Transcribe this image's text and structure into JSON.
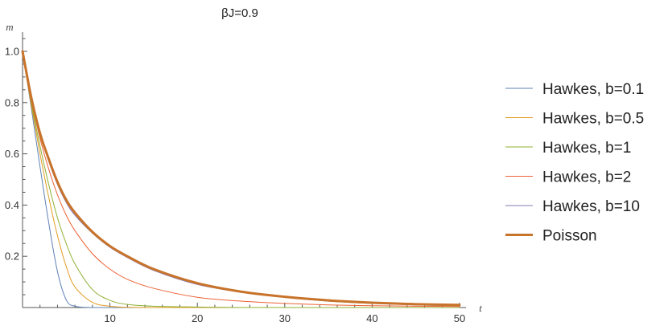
{
  "chart_data": {
    "type": "line",
    "title": "βJ=0.9",
    "xlabel": "t",
    "ylabel": "m",
    "xlim": [
      0,
      50
    ],
    "ylim": [
      0,
      1.05
    ],
    "x_ticks": [
      10,
      20,
      30,
      40,
      50
    ],
    "y_ticks": [
      0.2,
      0.4,
      0.6,
      0.8,
      1.0
    ],
    "x_tick_labels": [
      "10",
      "20",
      "30",
      "40",
      "50"
    ],
    "y_tick_labels": [
      "0.2",
      "0.4",
      "0.6",
      "0.8",
      "1.0"
    ],
    "grid": false,
    "legend_position": "right",
    "x": [
      0,
      1,
      2,
      3,
      4,
      5,
      6,
      8,
      10,
      12,
      15,
      20,
      25,
      30,
      35,
      40,
      45,
      50
    ],
    "series": [
      {
        "name": "Hawkes, b=0.1",
        "color": "#5e81b5",
        "values": [
          1.0,
          0.78,
          0.55,
          0.33,
          0.14,
          0.03,
          0.005,
          0.0,
          0.0,
          0.0,
          0.0,
          0.0,
          0.0,
          0.0,
          0.0,
          0.0,
          0.0,
          0.0
        ]
      },
      {
        "name": "Hawkes, b=0.5",
        "color": "#e19c24",
        "values": [
          1.0,
          0.79,
          0.6,
          0.43,
          0.28,
          0.16,
          0.08,
          0.02,
          0.005,
          0.001,
          0.0,
          0.0,
          0.0,
          0.0,
          0.0,
          0.0,
          0.0,
          0.0
        ]
      },
      {
        "name": "Hawkes, b=1",
        "color": "#8fb032",
        "values": [
          1.0,
          0.8,
          0.63,
          0.48,
          0.35,
          0.25,
          0.17,
          0.07,
          0.028,
          0.012,
          0.005,
          0.002,
          0.0,
          0.0,
          0.0,
          0.0,
          0.0,
          0.0
        ]
      },
      {
        "name": "Hawkes, b=2",
        "color": "#eb6235",
        "values": [
          1.0,
          0.81,
          0.66,
          0.54,
          0.44,
          0.36,
          0.3,
          0.21,
          0.15,
          0.11,
          0.075,
          0.04,
          0.025,
          0.016,
          0.01,
          0.007,
          0.005,
          0.004
        ]
      },
      {
        "name": "Hawkes, b=10",
        "color": "#8778b3",
        "values": [
          1.0,
          0.82,
          0.68,
          0.57,
          0.48,
          0.41,
          0.36,
          0.29,
          0.235,
          0.195,
          0.145,
          0.09,
          0.06,
          0.04,
          0.025,
          0.016,
          0.01,
          0.007
        ]
      },
      {
        "name": "Poisson",
        "color": "#c8732a",
        "values": [
          1.0,
          0.82,
          0.68,
          0.58,
          0.49,
          0.42,
          0.37,
          0.295,
          0.24,
          0.2,
          0.15,
          0.095,
          0.062,
          0.042,
          0.028,
          0.019,
          0.013,
          0.01
        ]
      }
    ]
  }
}
